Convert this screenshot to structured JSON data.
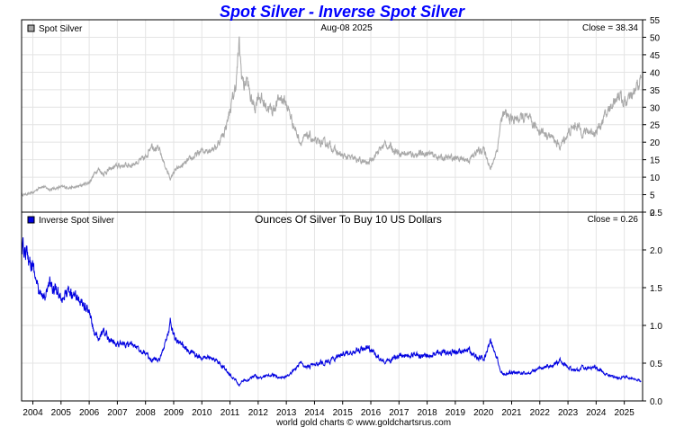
{
  "chart_data": [
    {
      "type": "line",
      "title": "Spot Silver - Inverse Spot Silver",
      "legend": "Spot Silver",
      "date": "Aug-08  2025",
      "close_label": "Close = 38.34",
      "ylim": [
        0,
        55
      ],
      "yticks": [
        0,
        5,
        10,
        15,
        20,
        25,
        30,
        35,
        40,
        45,
        50,
        55
      ],
      "series": [
        {
          "name": "Spot Silver",
          "color": "#a8a8a8",
          "x": [
            2003.6,
            2004.0,
            2004.3,
            2004.6,
            2005.0,
            2005.5,
            2006.0,
            2006.3,
            2006.5,
            2006.8,
            2007.0,
            2007.5,
            2008.0,
            2008.2,
            2008.5,
            2008.8,
            2008.9,
            2009.0,
            2009.5,
            2010.0,
            2010.5,
            2010.8,
            2011.0,
            2011.2,
            2011.33,
            2011.4,
            2011.5,
            2011.6,
            2011.75,
            2011.9,
            2012.0,
            2012.2,
            2012.5,
            2012.8,
            2013.0,
            2013.3,
            2013.5,
            2013.8,
            2014.0,
            2014.5,
            2014.8,
            2015.0,
            2015.5,
            2015.9,
            2016.0,
            2016.5,
            2016.8,
            2017.0,
            2017.5,
            2018.0,
            2018.5,
            2019.0,
            2019.5,
            2019.8,
            2020.0,
            2020.2,
            2020.25,
            2020.5,
            2020.6,
            2020.7,
            2021.0,
            2021.5,
            2021.9,
            2022.0,
            2022.5,
            2022.7,
            2023.0,
            2023.3,
            2023.5,
            2024.0,
            2024.3,
            2024.5,
            2024.8,
            2025.0,
            2025.3,
            2025.6
          ],
          "y": [
            4.9,
            5.5,
            7.5,
            6.5,
            7.2,
            7.0,
            8.5,
            12.5,
            11.0,
            12.5,
            13.2,
            13.5,
            15.5,
            19.5,
            17.5,
            11.0,
            9.5,
            11.5,
            14.5,
            17.5,
            18.5,
            23.0,
            29.0,
            36.0,
            48.0,
            40.0,
            36.0,
            38.0,
            32.0,
            30.0,
            34.0,
            31.0,
            29.0,
            33.0,
            31.0,
            24.0,
            20.0,
            22.0,
            20.0,
            19.5,
            17.0,
            16.0,
            15.0,
            13.9,
            15.0,
            19.5,
            18.0,
            17.0,
            16.5,
            16.8,
            15.5,
            15.5,
            15.0,
            17.5,
            18.0,
            14.0,
            12.0,
            18.5,
            25.0,
            28.0,
            26.5,
            27.0,
            24.0,
            23.5,
            21.0,
            18.5,
            22.5,
            25.0,
            23.0,
            23.0,
            27.0,
            30.0,
            34.0,
            31.0,
            33.0,
            38.34
          ]
        }
      ]
    },
    {
      "type": "line",
      "title": "Ounces Of Silver To Buy 10 US Dollars",
      "legend": "Inverse Spot Silver",
      "close_label": "Close = 0.26",
      "ylim": [
        0,
        2.5
      ],
      "yticks": [
        0.0,
        0.5,
        1.0,
        1.5,
        2.0,
        2.5
      ],
      "ytick_labels": [
        "0.0",
        "0.5",
        "1.0",
        "1.5",
        "2.0",
        "2.5"
      ],
      "x_range": [
        2003.6,
        2025.65
      ],
      "xticks": [
        2004,
        2005,
        2006,
        2007,
        2008,
        2009,
        2010,
        2011,
        2012,
        2013,
        2014,
        2015,
        2016,
        2017,
        2018,
        2019,
        2020,
        2021,
        2022,
        2023,
        2024,
        2025
      ],
      "series": [
        {
          "name": "Inverse Spot Silver",
          "color": "#0000e0",
          "source": "10 / Spot Silver"
        }
      ]
    }
  ],
  "footer": "world gold charts © www.goldchartsrus.com"
}
